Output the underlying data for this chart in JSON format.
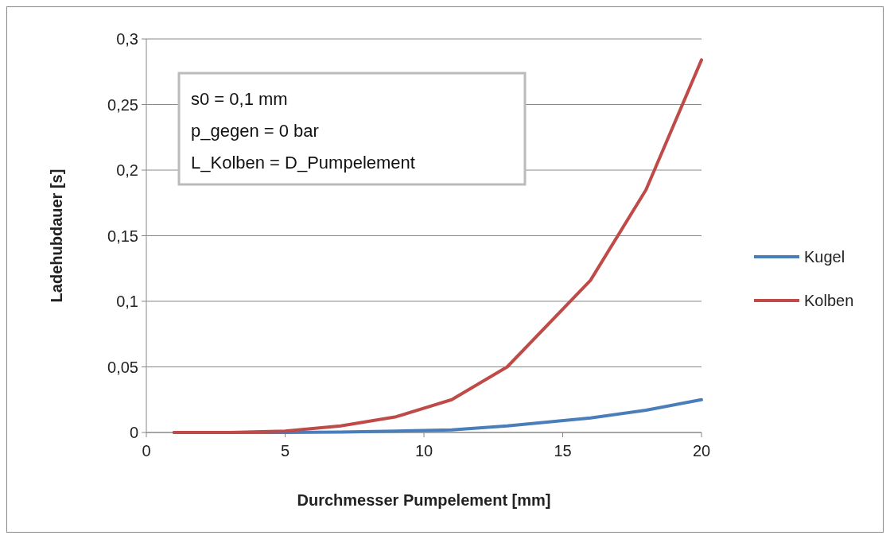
{
  "chart_data": {
    "type": "line",
    "xlabel": "Durchmesser Pumpelement [mm]",
    "ylabel": "Ladehubdauer [s]",
    "annotations": [
      "s0 = 0,1 mm",
      "p_gegen = 0 bar",
      "L_Kolben = D_Pumpelement"
    ],
    "x": [
      1,
      3,
      5,
      7,
      9,
      11,
      13,
      16,
      18,
      20
    ],
    "series": [
      {
        "name": "Kugel",
        "color": "#4a7ebb",
        "values": [
          0,
          0,
          0,
          0.0003,
          0.001,
          0.002,
          0.005,
          0.011,
          0.017,
          0.025
        ]
      },
      {
        "name": "Kolben",
        "color": "#be4b48",
        "values": [
          0,
          0,
          0.001,
          0.005,
          0.012,
          0.025,
          0.05,
          0.116,
          0.185,
          0.284
        ]
      }
    ],
    "xlim": [
      0,
      20
    ],
    "xticks": [
      0,
      5,
      10,
      15,
      20
    ],
    "ylim": [
      0,
      0.3
    ],
    "yticks": [
      {
        "value": 0,
        "label": "0"
      },
      {
        "value": 0.05,
        "label": "0,05"
      },
      {
        "value": 0.1,
        "label": "0,1"
      },
      {
        "value": 0.15,
        "label": "0,15"
      },
      {
        "value": 0.2,
        "label": "0,2"
      },
      {
        "value": 0.25,
        "label": "0,25"
      },
      {
        "value": 0.3,
        "label": "0,3"
      }
    ],
    "grid": "y",
    "legend": "right",
    "line_style": "solid",
    "marker": "none"
  }
}
